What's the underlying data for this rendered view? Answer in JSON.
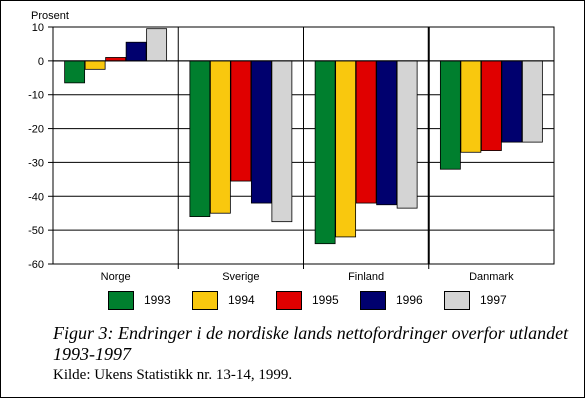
{
  "chart_data": {
    "type": "bar",
    "ylabel": "Prosent",
    "ylim": [
      -60,
      10
    ],
    "yticks": [
      "10",
      "0",
      "-10",
      "-20",
      "-30",
      "-40",
      "-50",
      "-60"
    ],
    "categories": [
      "Norge",
      "Sverige",
      "Finland",
      "Danmark"
    ],
    "grid": true,
    "legend": "bottom",
    "series": [
      {
        "name": "1993",
        "color": "#007f2e",
        "values": [
          -6.5,
          -46,
          -54,
          -32
        ]
      },
      {
        "name": "1994",
        "color": "#f9c80e",
        "values": [
          -2.5,
          -45,
          -52,
          -27
        ]
      },
      {
        "name": "1995",
        "color": "#e00000",
        "values": [
          1,
          -35.5,
          -42,
          -26.5
        ]
      },
      {
        "name": "1996",
        "color": "#00006e",
        "values": [
          5.5,
          -42,
          -42.5,
          -24
        ]
      },
      {
        "name": "1997",
        "color": "#d4d4d4",
        "values": [
          9.5,
          -47.5,
          -43.5,
          -24
        ]
      }
    ]
  },
  "caption": {
    "title": "Figur 3: Endringer i de nordiske lands nettofordringer overfor utlandet 1993-1997",
    "source": "Kilde: Ukens Statistikk nr. 13-14, 1999."
  }
}
